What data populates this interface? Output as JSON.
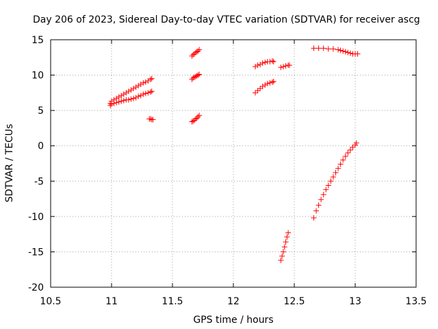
{
  "chart_data": {
    "type": "scatter",
    "title": "Day 206 of 2023, Sidereal Day-to-day VTEC variation (SDTVAR) for receiver ascg",
    "xlabel": "GPS time / hours",
    "ylabel": "SDTVAR / TECUs",
    "xlim": [
      10.5,
      13.5
    ],
    "ylim": [
      -20,
      15
    ],
    "xticks": [
      10.5,
      11,
      11.5,
      12,
      12.5,
      13,
      13.5
    ],
    "xtick_labels": [
      "10.5",
      "11",
      "11.5",
      "12",
      "12.5",
      "13",
      "13.5"
    ],
    "yticks": [
      -20,
      -15,
      -10,
      -5,
      0,
      5,
      10,
      15
    ],
    "ytick_labels": [
      "-20",
      "-15",
      "-10",
      "-5",
      "0",
      "5",
      "10",
      "15"
    ],
    "grid": true,
    "marker": "plus",
    "color": "#ff0000",
    "series": [
      {
        "segments": [
          {
            "x": [
              10.99,
              11.0,
              11.02,
              11.04,
              11.06,
              11.08,
              11.1,
              11.12,
              11.14,
              11.16,
              11.18,
              11.2,
              11.22,
              11.24,
              11.26,
              11.28,
              11.3,
              11.32,
              11.33
            ],
            "y": [
              6.0,
              6.3,
              6.5,
              6.7,
              6.9,
              7.1,
              7.3,
              7.5,
              7.7,
              7.9,
              8.1,
              8.3,
              8.5,
              8.7,
              8.9,
              9.0,
              9.2,
              9.4,
              9.5
            ]
          },
          {
            "x": [
              10.99,
              11.0,
              11.02,
              11.04,
              11.06,
              11.08,
              11.1,
              11.12,
              11.14,
              11.16,
              11.18,
              11.2,
              11.22,
              11.24,
              11.26,
              11.28,
              11.3,
              11.32,
              11.33
            ],
            "y": [
              5.7,
              5.9,
              6.0,
              6.1,
              6.2,
              6.3,
              6.4,
              6.5,
              6.5,
              6.6,
              6.7,
              6.8,
              7.0,
              7.1,
              7.3,
              7.4,
              7.5,
              7.6,
              7.7
            ]
          },
          {
            "x": [
              11.31,
              11.32,
              11.33,
              11.34
            ],
            "y": [
              3.8,
              3.8,
              3.7,
              3.7
            ]
          },
          {
            "x": [
              11.66,
              11.67,
              11.68,
              11.69,
              11.7,
              11.71,
              11.72
            ],
            "y": [
              12.7,
              12.9,
              13.0,
              13.2,
              13.3,
              13.4,
              13.6
            ]
          },
          {
            "x": [
              11.66,
              11.67,
              11.68,
              11.69,
              11.7,
              11.71,
              11.72
            ],
            "y": [
              9.4,
              9.6,
              9.7,
              9.8,
              9.9,
              10.0,
              10.1
            ]
          },
          {
            "x": [
              11.66,
              11.67,
              11.68,
              11.69,
              11.7,
              11.71,
              11.72
            ],
            "y": [
              3.4,
              3.5,
              3.6,
              3.8,
              3.9,
              4.1,
              4.3
            ]
          },
          {
            "x": [
              12.18,
              12.2,
              12.22,
              12.24,
              12.26,
              12.28,
              12.3,
              12.32,
              12.33
            ],
            "y": [
              11.2,
              11.4,
              11.5,
              11.7,
              11.8,
              11.9,
              11.9,
              12.0,
              11.9
            ]
          },
          {
            "x": [
              12.18,
              12.2,
              12.22,
              12.24,
              12.26,
              12.28,
              12.3,
              12.32,
              12.33
            ],
            "y": [
              7.5,
              7.8,
              8.1,
              8.4,
              8.6,
              8.8,
              8.9,
              9.0,
              9.1
            ]
          },
          {
            "x": [
              12.39,
              12.41,
              12.43,
              12.45,
              12.46
            ],
            "y": [
              11.1,
              11.2,
              11.3,
              11.4,
              11.4
            ]
          },
          {
            "x": [
              12.66,
              12.7,
              12.74,
              12.78,
              12.82,
              12.86,
              12.88,
              12.9,
              12.92,
              12.94,
              12.96,
              12.98,
              13.0,
              13.02
            ],
            "y": [
              13.8,
              13.8,
              13.8,
              13.7,
              13.7,
              13.6,
              13.5,
              13.4,
              13.3,
              13.2,
              13.1,
              13.0,
              13.0,
              13.0
            ]
          },
          {
            "x": [
              12.66,
              12.68,
              12.7,
              12.72,
              12.74,
              12.76,
              12.78,
              12.8,
              12.82,
              12.84,
              12.86,
              12.88,
              12.9,
              12.92,
              12.94,
              12.96,
              12.98,
              13.0,
              13.01
            ],
            "y": [
              -10.2,
              -9.2,
              -8.4,
              -7.6,
              -6.9,
              -6.2,
              -5.6,
              -5.0,
              -4.4,
              -3.8,
              -3.2,
              -2.6,
              -2.0,
              -1.5,
              -1.0,
              -0.6,
              -0.2,
              0.1,
              0.4
            ]
          },
          {
            "x": [
              12.39,
              12.4,
              12.41,
              12.42,
              12.43,
              12.44,
              12.45
            ],
            "y": [
              -16.2,
              -15.6,
              -15.0,
              -14.3,
              -13.6,
              -12.9,
              -12.3
            ]
          }
        ]
      }
    ]
  }
}
